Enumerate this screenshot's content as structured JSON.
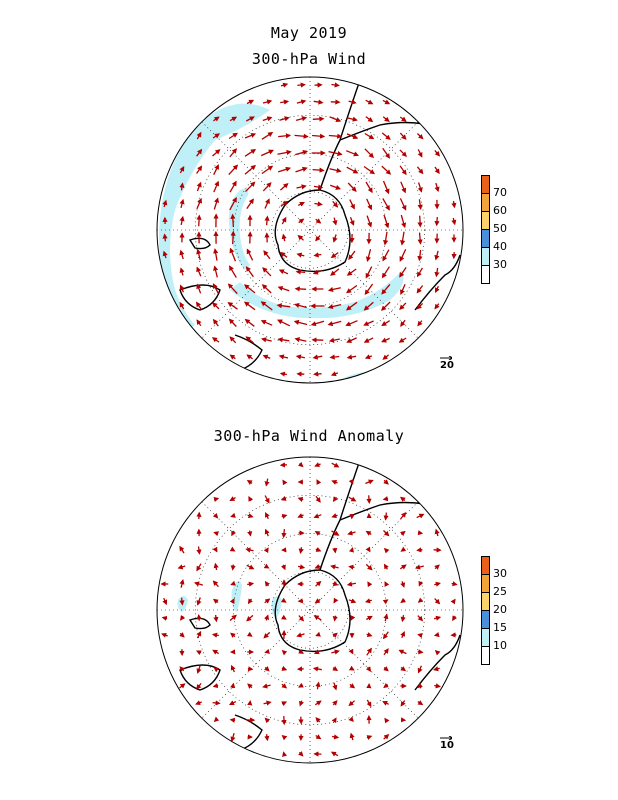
{
  "figure": {
    "date": "May 2019",
    "panel1_title": "300-hPa Wind",
    "panel2_title": "300-hPa Wind Anomaly"
  },
  "legend_wind": {
    "ticks": [
      "70",
      "60",
      "50",
      "40",
      "30"
    ],
    "colors": [
      "#e8621a",
      "#f2a33a",
      "#fad36b",
      "#4a8fd9",
      "#bfeff7",
      "#ffffff"
    ]
  },
  "legend_anom": {
    "ticks": [
      "30",
      "25",
      "20",
      "15",
      "10"
    ],
    "colors": [
      "#e8621a",
      "#f2a33a",
      "#fad36b",
      "#4a8fd9",
      "#bfeff7",
      "#ffffff"
    ]
  },
  "reference_vectors": {
    "wind": "20",
    "anomaly": "10"
  },
  "style": {
    "arrow_color": "#b30000",
    "shade_color": "#bfeff7"
  }
}
